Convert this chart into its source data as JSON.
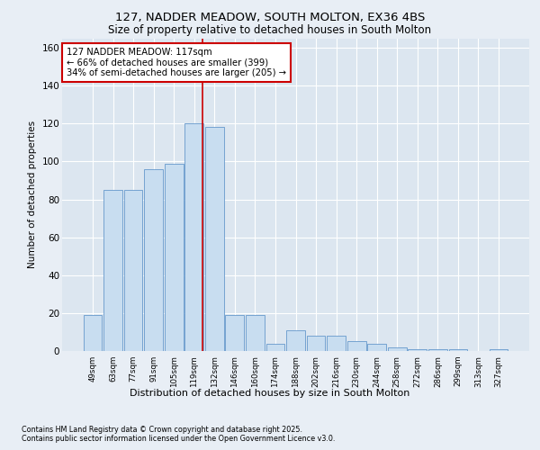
{
  "title1": "127, NADDER MEADOW, SOUTH MOLTON, EX36 4BS",
  "title2": "Size of property relative to detached houses in South Molton",
  "xlabel": "Distribution of detached houses by size in South Molton",
  "ylabel": "Number of detached properties",
  "categories": [
    "49sqm",
    "63sqm",
    "77sqm",
    "91sqm",
    "105sqm",
    "119sqm",
    "132sqm",
    "146sqm",
    "160sqm",
    "174sqm",
    "188sqm",
    "202sqm",
    "216sqm",
    "230sqm",
    "244sqm",
    "258sqm",
    "272sqm",
    "286sqm",
    "299sqm",
    "313sqm",
    "327sqm"
  ],
  "values": [
    19,
    85,
    85,
    96,
    99,
    120,
    118,
    19,
    19,
    4,
    11,
    8,
    8,
    5,
    4,
    2,
    1,
    1,
    1,
    0,
    1
  ],
  "bar_color": "#c8ddf0",
  "bar_edge_color": "#6699cc",
  "background_color": "#dce6f0",
  "fig_background_color": "#e8eef5",
  "grid_color": "#ffffff",
  "vline_color": "#cc0000",
  "vline_x_index": 5.43,
  "annotation_text": "127 NADDER MEADOW: 117sqm\n← 66% of detached houses are smaller (399)\n34% of semi-detached houses are larger (205) →",
  "annotation_box_color": "#ffffff",
  "annotation_box_edge": "#cc0000",
  "footer1": "Contains HM Land Registry data © Crown copyright and database right 2025.",
  "footer2": "Contains public sector information licensed under the Open Government Licence v3.0.",
  "ylim": [
    0,
    165
  ],
  "yticks": [
    0,
    20,
    40,
    60,
    80,
    100,
    120,
    140,
    160
  ]
}
